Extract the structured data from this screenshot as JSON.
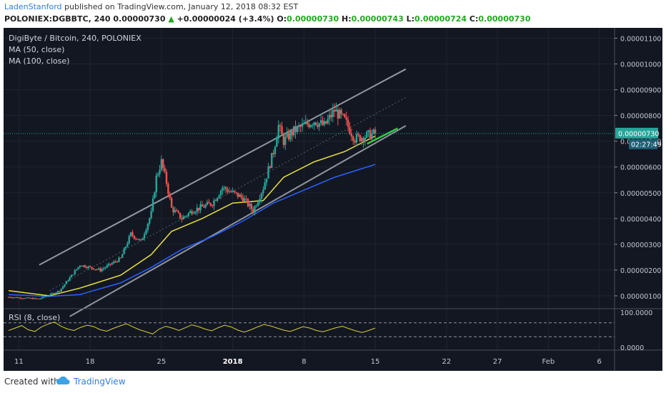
{
  "header": {
    "author": "LadenStanford",
    "published_text": "published on TradingView.com, January 12, 2018 08:32 EST",
    "symbol_line": "POLONIEX:DGBBTC, 240",
    "last_price": "0.00000730",
    "change_arrow": "▲",
    "change": "+0.00000024 (+3.4%)",
    "o_label": "O:",
    "o_value": "0.00000730",
    "h_label": "H:",
    "h_value": "0.00000743",
    "l_label": "L:",
    "l_value": "0.00000724",
    "c_label": "C:",
    "c_value": "0.00000730"
  },
  "legend": {
    "title": "DigiByte / Bitcoin, 240, POLONIEX",
    "ma50": "MA (50, close)",
    "ma100": "MA (100, close)",
    "rsi": "RSI (8, close)"
  },
  "footer": {
    "created_with": "Created with",
    "brand": "TradingView"
  },
  "colors": {
    "background": "#131722",
    "up": "#26a69a",
    "down": "#ef5350",
    "ma50": "#e8e03a",
    "ma100": "#2962ff",
    "channel": "#9ea3ad",
    "breakout": "#2ecc40",
    "price_badge": "#26a69a",
    "rsi": "#d5d034"
  },
  "chart_data": {
    "type": "candlestick",
    "symbol": "DGBBTC",
    "exchange": "POLONIEX",
    "timeframe": "240",
    "y_axis": {
      "ticks": [
        "0.00001100",
        "0.00001000",
        "0.00000900",
        "0.00000800",
        "0.00000700",
        "0.00000600",
        "0.00000500",
        "0.00000400",
        "0.00000300",
        "0.00000200",
        "0.00000100"
      ],
      "ylim": [
        5e-07,
        1.14e-05
      ]
    },
    "x_axis": {
      "ticks": [
        "11",
        "18",
        "25",
        "2018",
        "8",
        "15",
        "22",
        "27",
        "Feb",
        "6"
      ],
      "tick_days": [
        -21,
        -14,
        -7,
        0,
        7,
        14,
        21,
        26,
        31,
        36
      ],
      "xlim": [
        -22.5,
        37.5
      ]
    },
    "current_price": "0.00000730",
    "countdown": "02:27:49",
    "price_path": [
      {
        "day": -22,
        "price": 9.5e-07
      },
      {
        "day": -19,
        "price": 8.8e-07
      },
      {
        "day": -17,
        "price": 1.2e-06
      },
      {
        "day": -15,
        "price": 2.2e-06
      },
      {
        "day": -13,
        "price": 2e-06
      },
      {
        "day": -11,
        "price": 2.45e-06
      },
      {
        "day": -10,
        "price": 3.4e-06
      },
      {
        "day": -9,
        "price": 3.1e-06
      },
      {
        "day": -8,
        "price": 4.2e-06
      },
      {
        "day": -7.5,
        "price": 5.6e-06
      },
      {
        "day": -7,
        "price": 6.2e-06
      },
      {
        "day": -6.5,
        "price": 5.4e-06
      },
      {
        "day": -6,
        "price": 4.4e-06
      },
      {
        "day": -5,
        "price": 4e-06
      },
      {
        "day": -4,
        "price": 4.3e-06
      },
      {
        "day": -2,
        "price": 4.6e-06
      },
      {
        "day": -1,
        "price": 5.2e-06
      },
      {
        "day": 0,
        "price": 5e-06
      },
      {
        "day": 1,
        "price": 4.8e-06
      },
      {
        "day": 2,
        "price": 4.3e-06
      },
      {
        "day": 3,
        "price": 5.2e-06
      },
      {
        "day": 4,
        "price": 6.6e-06
      },
      {
        "day": 4.5,
        "price": 7.6e-06
      },
      {
        "day": 5,
        "price": 7e-06
      },
      {
        "day": 6,
        "price": 7.4e-06
      },
      {
        "day": 7,
        "price": 7.6e-06
      },
      {
        "day": 8,
        "price": 7.8e-06
      },
      {
        "day": 9,
        "price": 7.6e-06
      },
      {
        "day": 10,
        "price": 8.2e-06
      },
      {
        "day": 11,
        "price": 7.8e-06
      },
      {
        "day": 12,
        "price": 7.1e-06
      },
      {
        "day": 13,
        "price": 7.2e-06
      },
      {
        "day": 14,
        "price": 7.3e-06
      }
    ],
    "ma50_path": [
      {
        "day": -22,
        "price": 1.2e-06
      },
      {
        "day": -18,
        "price": 1e-06
      },
      {
        "day": -15,
        "price": 1.3e-06
      },
      {
        "day": -11,
        "price": 1.8e-06
      },
      {
        "day": -8,
        "price": 2.6e-06
      },
      {
        "day": -6,
        "price": 3.5e-06
      },
      {
        "day": -3,
        "price": 4e-06
      },
      {
        "day": 0,
        "price": 4.6e-06
      },
      {
        "day": 3,
        "price": 4.7e-06
      },
      {
        "day": 5,
        "price": 5.6e-06
      },
      {
        "day": 8,
        "price": 6.2e-06
      },
      {
        "day": 11,
        "price": 6.6e-06
      },
      {
        "day": 14,
        "price": 7.2e-06
      }
    ],
    "ma100_path": [
      {
        "day": -22,
        "price": 1.05e-06
      },
      {
        "day": -18,
        "price": 9.8e-07
      },
      {
        "day": -15,
        "price": 1.05e-06
      },
      {
        "day": -11,
        "price": 1.5e-06
      },
      {
        "day": -8,
        "price": 2.1e-06
      },
      {
        "day": -5,
        "price": 2.8e-06
      },
      {
        "day": -2,
        "price": 3.3e-06
      },
      {
        "day": 1,
        "price": 3.9e-06
      },
      {
        "day": 4,
        "price": 4.6e-06
      },
      {
        "day": 7,
        "price": 5.1e-06
      },
      {
        "day": 10,
        "price": 5.6e-06
      },
      {
        "day": 14,
        "price": 6.1e-06
      }
    ],
    "channel": {
      "upper": [
        {
          "day": -19,
          "price": 2.2e-06
        },
        {
          "day": 17,
          "price": 9.8e-06
        }
      ],
      "lower": [
        {
          "day": -16,
          "price": 2e-07
        },
        {
          "day": 17,
          "price": 7.6e-06
        }
      ],
      "mid": [
        {
          "day": -18,
          "price": 1.2e-06
        },
        {
          "day": 17,
          "price": 8.7e-06
        }
      ]
    },
    "breakout_line": [
      {
        "day": 13.2,
        "price": 6.9e-06
      },
      {
        "day": 16.2,
        "price": 7.5e-06
      }
    ],
    "rsi": {
      "title": "RSI (8, close)",
      "ticks": [
        "100.0000",
        "0.0000"
      ],
      "overbought": 70,
      "oversold": 30,
      "values": [
        48,
        55,
        62,
        50,
        45,
        58,
        66,
        72,
        60,
        52,
        48,
        57,
        63,
        59,
        50,
        46,
        54,
        61,
        67,
        58,
        50,
        44,
        38,
        52,
        60,
        55,
        48,
        56,
        64,
        59,
        52,
        47,
        56,
        63,
        58,
        49,
        43,
        50,
        58,
        65,
        61,
        55,
        49,
        45,
        52,
        59,
        55,
        48,
        44,
        50,
        56,
        60,
        53,
        47,
        42,
        48,
        55
      ]
    },
    "grid": true
  }
}
